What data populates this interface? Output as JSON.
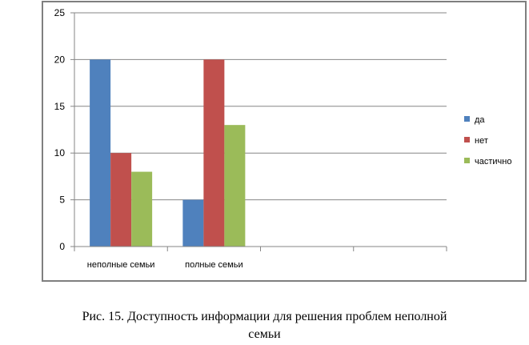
{
  "chart_data": {
    "type": "bar",
    "categories": [
      "неполные семьи",
      "полные семьи",
      "",
      ""
    ],
    "series": [
      {
        "name": "да",
        "values": [
          20,
          5,
          null,
          null
        ],
        "color": "#4f81bd"
      },
      {
        "name": "нет",
        "values": [
          10,
          20,
          null,
          null
        ],
        "color": "#c0504d"
      },
      {
        "name": "частично",
        "values": [
          8,
          13,
          null,
          null
        ],
        "color": "#9bbb59"
      }
    ],
    "ylim": [
      0,
      25
    ],
    "yticks": [
      0,
      5,
      10,
      15,
      20,
      25
    ],
    "grid": true,
    "legend": "right",
    "title": "",
    "xlabel": "",
    "ylabel": ""
  },
  "caption": {
    "line1": "Рис. 15. Доступность информации для решения проблем неполной",
    "line2": "семьи"
  }
}
